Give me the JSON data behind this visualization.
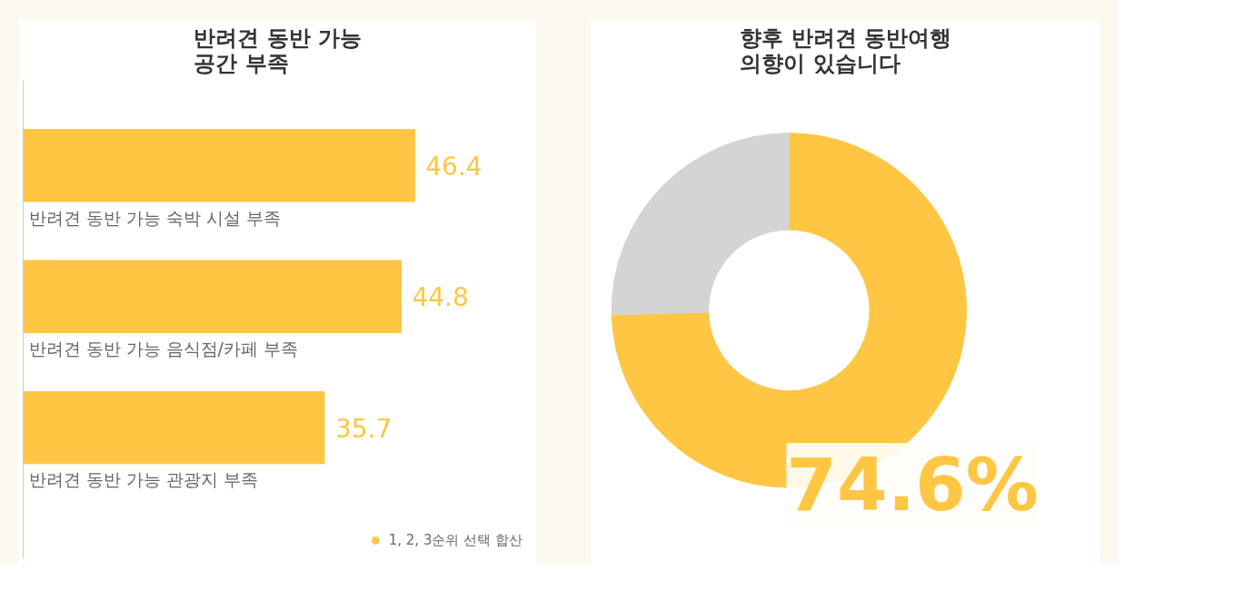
{
  "chart_data": [
    {
      "type": "bar",
      "orientation": "horizontal",
      "title": "반려견 동반 가능\n공간 부족",
      "categories": [
        "반려견 동반 가능 숙박 시설 부족",
        "반려견 동반 가능 음식점/카페 부족",
        "반려견 동반 가능 관광지 부족"
      ],
      "series": [
        {
          "name": "1, 2, 3순위 선택 합산",
          "color": "#fec642",
          "values": [
            46.4,
            44.8,
            35.7
          ]
        }
      ],
      "data_labels": true,
      "legend": "bottom right",
      "grid": false
    },
    {
      "type": "donut",
      "title": "향후 반려견 동반여행\n의향이 있습니다",
      "categories": [
        null,
        null
      ],
      "values": [
        74.6,
        25.4
      ],
      "colors": [
        "#fec642",
        "#d4d4d4"
      ],
      "value_labels": [
        "74.6%",
        null
      ]
    }
  ]
}
